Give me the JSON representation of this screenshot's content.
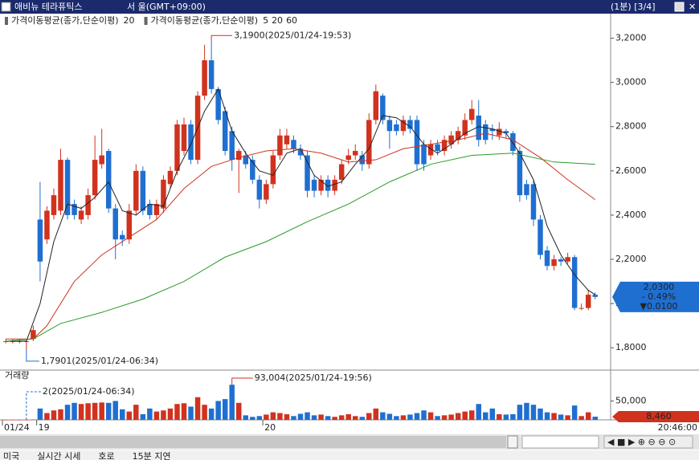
{
  "header": {
    "title": "애비뉴 테라퓨틱스",
    "market": "서 울(GMT+09:00)",
    "right": "(1분) [3/4]"
  },
  "chart_data": {
    "type": "candlestick",
    "legend": [
      {
        "label": "가격이동평균(종가,단순이평)",
        "items": [
          {
            "text": 20,
            "color": "#d0321e"
          }
        ]
      },
      {
        "label": "가격이동평균(종가,단순이평)",
        "items": [
          {
            "text": 5,
            "color": "#333333"
          },
          {
            "text": 20,
            "color": "#d0321e"
          },
          {
            "text": 60,
            "color": "#2a9a2a"
          }
        ]
      }
    ],
    "up_color": "#d0321e",
    "down_color": "#1f6fd1",
    "open": [
      1.83,
      1.83,
      1.83,
      1.83,
      1.84,
      2.38,
      2.29,
      2.4,
      2.42,
      2.65,
      2.45,
      2.38,
      2.4,
      2.49,
      2.63,
      2.69,
      2.43,
      2.31,
      2.29,
      2.42,
      2.6,
      2.45,
      2.4,
      2.43,
      2.54,
      2.6,
      2.69,
      2.81,
      2.65,
      2.94,
      3.1,
      2.97,
      2.87,
      2.78,
      2.65,
      2.67,
      2.65,
      2.56,
      2.47,
      2.54,
      2.67,
      2.72,
      2.74,
      2.7,
      2.67,
      2.56,
      2.51,
      2.56,
      2.51,
      2.56,
      2.65,
      2.67,
      2.67,
      2.63,
      2.83,
      2.94,
      2.83,
      2.81,
      2.78,
      2.83,
      2.83,
      2.72,
      2.67,
      2.72,
      2.69,
      2.72,
      2.74,
      2.76,
      2.83,
      2.85,
      2.81,
      2.79,
      2.76,
      2.78,
      2.77,
      2.69,
      2.54,
      2.54,
      2.38,
      2.24,
      2.17,
      2.2,
      2.19,
      2.21,
      1.98,
      1.98,
      2.04
    ],
    "high": [
      1.84,
      1.84,
      1.84,
      1.84,
      1.9,
      2.55,
      2.44,
      2.52,
      2.7,
      2.66,
      2.47,
      2.44,
      2.52,
      2.76,
      2.79,
      2.7,
      2.45,
      2.33,
      2.45,
      2.63,
      2.62,
      2.47,
      2.47,
      2.58,
      2.62,
      2.83,
      2.84,
      2.83,
      2.96,
      3.17,
      3.19,
      2.98,
      2.89,
      2.8,
      2.7,
      2.69,
      2.67,
      2.58,
      2.56,
      2.69,
      2.79,
      2.79,
      2.76,
      2.72,
      2.69,
      2.58,
      2.58,
      2.58,
      2.58,
      2.65,
      2.7,
      2.72,
      2.69,
      2.86,
      2.99,
      2.95,
      2.85,
      2.83,
      2.85,
      2.85,
      2.85,
      2.74,
      2.74,
      2.74,
      2.76,
      2.78,
      2.8,
      2.86,
      2.92,
      2.92,
      2.83,
      2.81,
      2.82,
      2.79,
      2.78,
      2.71,
      2.56,
      2.56,
      2.4,
      2.26,
      2.22,
      2.21,
      2.23,
      2.22,
      2.0,
      2.06,
      2.05
    ],
    "low": [
      1.82,
      1.82,
      1.82,
      1.7901,
      1.83,
      2.1,
      2.27,
      2.38,
      2.4,
      2.38,
      2.38,
      2.36,
      2.38,
      2.47,
      2.61,
      2.41,
      2.2,
      2.26,
      2.27,
      2.4,
      2.4,
      2.38,
      2.38,
      2.41,
      2.52,
      2.58,
      2.67,
      2.63,
      2.63,
      2.92,
      2.95,
      2.81,
      2.67,
      2.6,
      2.5,
      2.61,
      2.54,
      2.43,
      2.45,
      2.52,
      2.65,
      2.7,
      2.68,
      2.65,
      2.48,
      2.48,
      2.49,
      2.48,
      2.49,
      2.54,
      2.63,
      2.65,
      2.6,
      2.61,
      2.81,
      2.81,
      2.7,
      2.76,
      2.76,
      2.77,
      2.6,
      2.6,
      2.65,
      2.67,
      2.67,
      2.7,
      2.72,
      2.74,
      2.81,
      2.71,
      2.72,
      2.74,
      2.74,
      2.75,
      2.67,
      2.46,
      2.47,
      2.35,
      2.2,
      2.15,
      2.15,
      2.17,
      2.18,
      1.97,
      1.97,
      1.97,
      2.02
    ],
    "close": [
      1.83,
      1.83,
      1.83,
      1.83,
      1.88,
      2.19,
      2.42,
      2.49,
      2.65,
      2.4,
      2.4,
      2.42,
      2.49,
      2.65,
      2.67,
      2.43,
      2.29,
      2.29,
      2.42,
      2.6,
      2.42,
      2.4,
      2.45,
      2.56,
      2.6,
      2.81,
      2.81,
      2.65,
      2.94,
      3.1,
      2.97,
      2.83,
      2.69,
      2.65,
      2.69,
      2.63,
      2.56,
      2.47,
      2.54,
      2.67,
      2.76,
      2.76,
      2.7,
      2.67,
      2.51,
      2.51,
      2.56,
      2.51,
      2.56,
      2.63,
      2.67,
      2.69,
      2.63,
      2.83,
      2.96,
      2.83,
      2.78,
      2.78,
      2.83,
      2.79,
      2.63,
      2.63,
      2.72,
      2.69,
      2.74,
      2.76,
      2.78,
      2.83,
      2.88,
      2.74,
      2.74,
      2.78,
      2.79,
      2.77,
      2.69,
      2.49,
      2.49,
      2.38,
      2.22,
      2.17,
      2.2,
      2.19,
      2.21,
      1.98,
      1.98,
      2.04,
      2.03
    ],
    "moving_averages": [
      {
        "color": "#222222",
        "x": [
          0,
          3,
          5,
          7,
          9,
          11,
          13,
          15,
          17,
          19,
          21,
          23,
          25,
          27,
          29,
          31,
          33,
          35,
          37,
          39,
          41,
          43,
          45,
          47,
          49,
          51,
          53,
          55,
          57,
          59,
          61,
          63,
          65,
          67,
          69,
          71,
          73,
          75,
          77,
          79,
          81,
          83,
          85,
          86
        ],
        "values": [
          1.83,
          1.83,
          2.0,
          2.28,
          2.45,
          2.43,
          2.48,
          2.55,
          2.42,
          2.4,
          2.45,
          2.44,
          2.6,
          2.72,
          2.87,
          2.97,
          2.78,
          2.68,
          2.6,
          2.58,
          2.68,
          2.7,
          2.58,
          2.53,
          2.55,
          2.63,
          2.7,
          2.85,
          2.84,
          2.8,
          2.72,
          2.68,
          2.72,
          2.77,
          2.8,
          2.79,
          2.77,
          2.68,
          2.56,
          2.35,
          2.22,
          2.13,
          2.06,
          2.04
        ]
      },
      {
        "color": "#d0321e",
        "x": [
          0,
          4,
          6,
          10,
          14,
          18,
          22,
          26,
          30,
          34,
          38,
          42,
          46,
          50,
          54,
          58,
          62,
          66,
          70,
          74,
          78,
          82,
          86
        ],
        "values": [
          1.84,
          1.84,
          1.9,
          2.1,
          2.22,
          2.3,
          2.38,
          2.52,
          2.62,
          2.66,
          2.69,
          2.7,
          2.68,
          2.64,
          2.65,
          2.7,
          2.72,
          2.74,
          2.77,
          2.74,
          2.66,
          2.56,
          2.47
        ]
      },
      {
        "color": "#2a9a2a",
        "x": [
          0,
          4,
          8,
          14,
          20,
          26,
          32,
          38,
          44,
          50,
          56,
          62,
          68,
          74,
          80,
          86
        ],
        "values": [
          1.83,
          1.84,
          1.91,
          1.96,
          2.02,
          2.1,
          2.21,
          2.28,
          2.37,
          2.45,
          2.55,
          2.63,
          2.67,
          2.68,
          2.64,
          2.63
        ]
      }
    ],
    "ylim": [
      1.71,
      3.3
    ],
    "yticks": [
      {
        "value": 1.8,
        "label": "1,8000"
      },
      {
        "value": 2.0,
        "label": "2,0000"
      },
      {
        "value": 2.2,
        "label": "2,2000"
      },
      {
        "value": 2.4,
        "label": "2,4000"
      },
      {
        "value": 2.6,
        "label": "2,6000"
      },
      {
        "value": 2.8,
        "label": "2,8000"
      },
      {
        "value": 3.0,
        "label": "3,0000"
      },
      {
        "value": 3.2,
        "label": "3,2000"
      }
    ],
    "max_annotation": {
      "index": 30,
      "value": 3.19,
      "label": "3,1900(2025/01/24-19:53)"
    },
    "min_annotation": {
      "index": 3,
      "value": 1.7901,
      "label": "1,7901(2025/01/24-06:34)"
    },
    "current": {
      "value": 2.03,
      "label": "2,0300",
      "change": "- 0.49%",
      "diff": "▼0.0100"
    },
    "volume_title": "거래량",
    "volume": [
      2,
      2,
      2,
      2,
      1000,
      30000,
      18000,
      25000,
      28000,
      40000,
      45000,
      42000,
      44000,
      45000,
      46000,
      45000,
      50000,
      28000,
      22000,
      40000,
      15000,
      30000,
      22000,
      25000,
      30000,
      42000,
      44000,
      35000,
      60000,
      40000,
      30000,
      50000,
      55000,
      93004,
      45000,
      12000,
      8000,
      10000,
      14000,
      20000,
      18000,
      15000,
      10000,
      16000,
      20000,
      12000,
      14000,
      10000,
      8000,
      12000,
      15000,
      10000,
      8000,
      18000,
      30000,
      20000,
      16000,
      10000,
      12000,
      14000,
      18000,
      25000,
      20000,
      10000,
      12000,
      14000,
      18000,
      22000,
      25000,
      42000,
      20000,
      30000,
      15000,
      14000,
      15000,
      40000,
      45000,
      40000,
      30000,
      20000,
      18000,
      14000,
      12000,
      38000,
      10000,
      20000,
      8460
    ],
    "vlim": [
      0,
      102000
    ],
    "vticks": [
      {
        "value": 50000,
        "label": "50,000"
      }
    ],
    "vmax_annotation": {
      "index": 33,
      "value": 93004,
      "label": "93,004(2025/01/24-19:56)"
    },
    "vmin_annotation": {
      "index": 3,
      "value": 2,
      "label": "2(2025/01/24-06:34)"
    },
    "vcurrent": {
      "value": 8460,
      "label": "8,460"
    },
    "xticks": [
      {
        "value": 0,
        "label": "01/24"
      },
      {
        "value": 5,
        "label": "19"
      },
      {
        "value": 38,
        "label": "20"
      }
    ],
    "last_time": "20:46:00"
  },
  "footer": {
    "tabs": [
      "미국",
      "실시간 시세",
      "호로",
      "15분 지연"
    ]
  }
}
